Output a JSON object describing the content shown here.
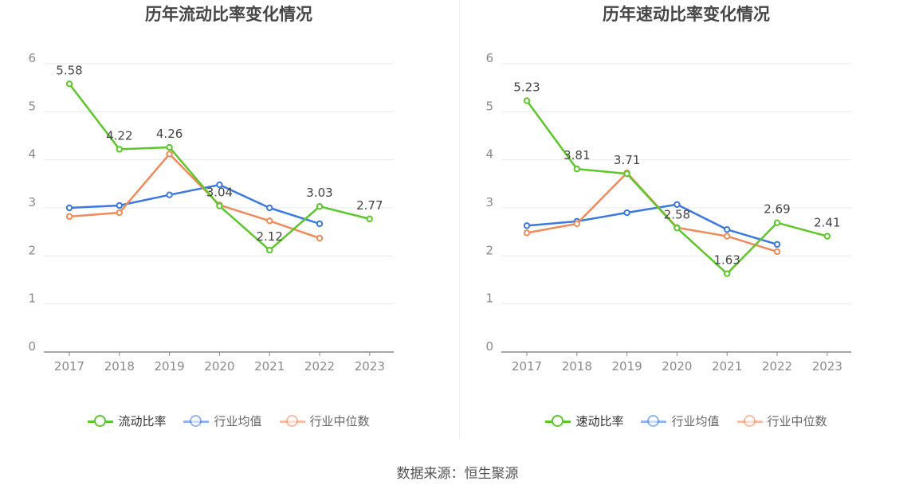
{
  "source": "数据来源：恒生聚源",
  "colors": {
    "primary": "#5cc62b",
    "industry_avg": "#3b78e0",
    "industry_median": "#f08a5b",
    "grid": "#e6e8f0",
    "axis": "#8a8a8a",
    "text": "#8a8a8a",
    "label": "#444444"
  },
  "chart_data": [
    {
      "type": "line",
      "title": "历年流动比率变化情况",
      "categories": [
        "2017",
        "2018",
        "2019",
        "2020",
        "2021",
        "2022",
        "2023"
      ],
      "ylim": [
        0,
        6
      ],
      "yticks": [
        0,
        1,
        2,
        3,
        4,
        5,
        6
      ],
      "grid": true,
      "legend_position": "bottom",
      "series": [
        {
          "name": "流动比率",
          "color": "#5cc62b",
          "labeled": true,
          "values": [
            5.58,
            4.22,
            4.26,
            3.04,
            2.12,
            3.03,
            2.77
          ]
        },
        {
          "name": "行业均值",
          "color": "#3b78e0",
          "labeled": false,
          "values": [
            3.0,
            3.05,
            3.27,
            3.48,
            3.0,
            2.67,
            null
          ]
        },
        {
          "name": "行业中位数",
          "color": "#f08a5b",
          "labeled": false,
          "values": [
            2.82,
            2.9,
            4.12,
            3.06,
            2.73,
            2.37,
            null
          ]
        }
      ]
    },
    {
      "type": "line",
      "title": "历年速动比率变化情况",
      "categories": [
        "2017",
        "2018",
        "2019",
        "2020",
        "2021",
        "2022",
        "2023"
      ],
      "ylim": [
        0,
        6
      ],
      "yticks": [
        0,
        1,
        2,
        3,
        4,
        5,
        6
      ],
      "grid": true,
      "legend_position": "bottom",
      "series": [
        {
          "name": "速动比率",
          "color": "#5cc62b",
          "labeled": true,
          "values": [
            5.23,
            3.81,
            3.71,
            2.58,
            1.63,
            2.69,
            2.41
          ]
        },
        {
          "name": "行业均值",
          "color": "#3b78e0",
          "labeled": false,
          "values": [
            2.63,
            2.72,
            2.9,
            3.07,
            2.55,
            2.24,
            null
          ]
        },
        {
          "name": "行业中位数",
          "color": "#f08a5b",
          "labeled": false,
          "values": [
            2.48,
            2.67,
            3.73,
            2.59,
            2.41,
            2.09,
            null
          ]
        }
      ]
    }
  ]
}
